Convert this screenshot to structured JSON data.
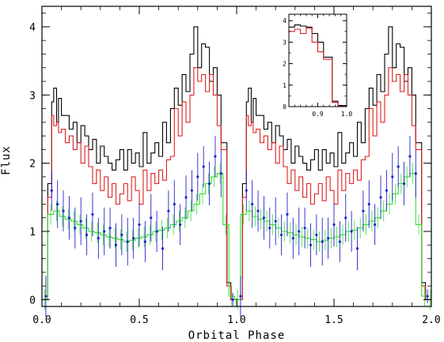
{
  "chart_data": [
    {
      "type": "line",
      "title": "",
      "xlabel": "Orbital Phase",
      "ylabel": "Flux",
      "xlim": [
        0.0,
        2.0
      ],
      "ylim": [
        -0.1,
        4.3
      ],
      "xticks": [
        "0.0",
        "0.5",
        "1.0",
        "1.5",
        "2.0"
      ],
      "yticks": [
        "0",
        "1",
        "2",
        "3",
        "4"
      ],
      "grid": false,
      "legend": "none",
      "colors": {
        "black": "#000000",
        "red": "#dd2020",
        "green": "#33dd33",
        "blue": "#2222cc"
      },
      "series": [
        {
          "style": "step",
          "color": "black",
          "x": [
            0.0,
            0.03,
            0.05,
            0.06,
            0.075,
            0.085,
            0.1,
            0.12,
            0.14,
            0.16,
            0.18,
            0.2,
            0.22,
            0.24,
            0.26,
            0.28,
            0.3,
            0.32,
            0.34,
            0.36,
            0.38,
            0.4,
            0.42,
            0.44,
            0.46,
            0.48,
            0.5,
            0.52,
            0.54,
            0.56,
            0.58,
            0.6,
            0.62,
            0.64,
            0.66,
            0.68,
            0.7,
            0.72,
            0.74,
            0.76,
            0.78,
            0.8,
            0.82,
            0.84,
            0.86,
            0.88,
            0.9,
            0.92,
            0.95,
            0.97,
            1.03,
            1.05,
            1.06,
            1.075,
            1.085,
            1.1,
            1.12,
            1.14,
            1.16,
            1.18,
            1.2,
            1.22,
            1.24,
            1.26,
            1.28,
            1.3,
            1.32,
            1.34,
            1.36,
            1.38,
            1.4,
            1.42,
            1.44,
            1.46,
            1.48,
            1.5,
            1.52,
            1.54,
            1.56,
            1.58,
            1.6,
            1.62,
            1.64,
            1.66,
            1.68,
            1.7,
            1.72,
            1.74,
            1.76,
            1.78,
            1.8,
            1.82,
            1.84,
            1.86,
            1.88,
            1.9,
            1.92,
            1.95,
            1.97,
            2.0
          ],
          "y": [
            0.0,
            1.7,
            2.9,
            3.1,
            2.6,
            2.95,
            2.7,
            2.7,
            2.5,
            2.6,
            2.3,
            2.55,
            2.4,
            2.2,
            2.35,
            2.0,
            2.25,
            2.1,
            2.0,
            1.9,
            2.05,
            2.2,
            1.9,
            2.2,
            2.0,
            2.15,
            1.95,
            2.45,
            2.0,
            2.15,
            2.3,
            2.1,
            2.6,
            2.3,
            2.8,
            3.1,
            2.85,
            3.3,
            3.05,
            3.6,
            4.0,
            3.4,
            3.75,
            3.7,
            3.2,
            3.4,
            3.0,
            2.3,
            0.25,
            0.0,
            1.7,
            2.9,
            3.1,
            2.6,
            2.95,
            2.7,
            2.7,
            2.5,
            2.6,
            2.3,
            2.55,
            2.4,
            2.2,
            2.35,
            2.0,
            2.25,
            2.1,
            2.0,
            1.9,
            2.05,
            2.2,
            1.9,
            2.2,
            2.0,
            2.15,
            1.95,
            2.45,
            2.0,
            2.15,
            2.3,
            2.1,
            2.6,
            2.3,
            2.8,
            3.1,
            2.85,
            3.3,
            3.05,
            3.6,
            4.0,
            3.4,
            3.75,
            3.7,
            3.2,
            3.4,
            3.0,
            2.3,
            0.25,
            0.0,
            0.0
          ]
        },
        {
          "style": "step",
          "color": "red",
          "x": [
            0.0,
            0.03,
            0.05,
            0.06,
            0.075,
            0.085,
            0.1,
            0.12,
            0.14,
            0.16,
            0.18,
            0.2,
            0.22,
            0.24,
            0.26,
            0.28,
            0.3,
            0.32,
            0.34,
            0.36,
            0.38,
            0.4,
            0.42,
            0.44,
            0.46,
            0.48,
            0.5,
            0.52,
            0.54,
            0.56,
            0.58,
            0.6,
            0.62,
            0.64,
            0.66,
            0.68,
            0.7,
            0.72,
            0.74,
            0.76,
            0.78,
            0.8,
            0.82,
            0.84,
            0.86,
            0.88,
            0.9,
            0.92,
            0.95,
            0.97,
            1.03,
            1.05,
            1.06,
            1.075,
            1.085,
            1.1,
            1.12,
            1.14,
            1.16,
            1.18,
            1.2,
            1.22,
            1.24,
            1.26,
            1.28,
            1.3,
            1.32,
            1.34,
            1.36,
            1.38,
            1.4,
            1.42,
            1.44,
            1.46,
            1.48,
            1.5,
            1.52,
            1.54,
            1.56,
            1.58,
            1.6,
            1.62,
            1.64,
            1.66,
            1.68,
            1.7,
            1.72,
            1.74,
            1.76,
            1.78,
            1.8,
            1.82,
            1.84,
            1.86,
            1.88,
            1.9,
            1.92,
            1.95,
            1.97,
            2.0
          ],
          "y": [
            0.0,
            1.5,
            2.7,
            2.55,
            2.6,
            2.45,
            2.5,
            2.3,
            2.4,
            2.2,
            2.3,
            2.0,
            2.25,
            1.95,
            1.7,
            1.9,
            1.6,
            1.8,
            1.5,
            1.7,
            1.4,
            1.55,
            1.7,
            1.45,
            1.8,
            1.6,
            1.4,
            1.9,
            1.6,
            1.85,
            1.7,
            1.9,
            1.75,
            2.05,
            2.1,
            2.8,
            2.4,
            2.9,
            2.6,
            3.0,
            3.4,
            3.2,
            3.3,
            3.05,
            3.3,
            3.0,
            2.55,
            2.2,
            0.2,
            0.0,
            1.5,
            2.7,
            2.55,
            2.6,
            2.45,
            2.5,
            2.3,
            2.4,
            2.2,
            2.3,
            2.0,
            2.25,
            1.95,
            1.7,
            1.9,
            1.6,
            1.8,
            1.5,
            1.7,
            1.4,
            1.55,
            1.7,
            1.45,
            1.8,
            1.6,
            1.4,
            1.9,
            1.6,
            1.85,
            1.7,
            1.9,
            1.75,
            2.05,
            2.1,
            2.8,
            2.4,
            2.9,
            2.6,
            3.0,
            3.4,
            3.2,
            3.3,
            3.05,
            3.3,
            3.0,
            2.55,
            2.2,
            0.2,
            0.0,
            0.0
          ]
        },
        {
          "style": "step-errorbar",
          "color": "green",
          "x": [
            0.0,
            0.03,
            0.06,
            0.09,
            0.12,
            0.15,
            0.18,
            0.21,
            0.24,
            0.27,
            0.3,
            0.33,
            0.36,
            0.39,
            0.42,
            0.45,
            0.48,
            0.51,
            0.54,
            0.57,
            0.6,
            0.63,
            0.66,
            0.69,
            0.72,
            0.75,
            0.78,
            0.81,
            0.84,
            0.87,
            0.9,
            0.93,
            0.96,
            0.99,
            1.02,
            1.05,
            1.08,
            1.11,
            1.14,
            1.17,
            1.2,
            1.23,
            1.26,
            1.29,
            1.32,
            1.35,
            1.38,
            1.41,
            1.44,
            1.47,
            1.5,
            1.53,
            1.56,
            1.59,
            1.62,
            1.65,
            1.68,
            1.71,
            1.74,
            1.77,
            1.8,
            1.83,
            1.86,
            1.89,
            1.92,
            1.95,
            1.98
          ],
          "y": [
            0.0,
            1.25,
            1.3,
            1.22,
            1.18,
            1.15,
            1.1,
            1.05,
            1.0,
            0.98,
            0.95,
            0.92,
            0.9,
            0.88,
            0.85,
            0.87,
            0.9,
            0.92,
            0.95,
            1.0,
            1.02,
            1.05,
            1.1,
            1.15,
            1.2,
            1.3,
            1.4,
            1.55,
            1.7,
            1.8,
            1.85,
            1.1,
            0.05,
            0.0,
            1.25,
            1.3,
            1.22,
            1.18,
            1.15,
            1.1,
            1.05,
            1.0,
            0.98,
            0.95,
            0.92,
            0.9,
            0.88,
            0.85,
            0.87,
            0.9,
            0.92,
            0.95,
            1.0,
            1.02,
            1.05,
            1.1,
            1.15,
            1.2,
            1.3,
            1.4,
            1.55,
            1.7,
            1.8,
            1.85,
            1.1,
            0.05,
            0.0
          ],
          "err": 0.15
        },
        {
          "style": "points-errorbar",
          "color": "blue",
          "x": [
            0.02,
            0.05,
            0.08,
            0.11,
            0.14,
            0.17,
            0.2,
            0.23,
            0.26,
            0.29,
            0.32,
            0.35,
            0.38,
            0.41,
            0.44,
            0.47,
            0.5,
            0.53,
            0.56,
            0.59,
            0.62,
            0.65,
            0.68,
            0.71,
            0.74,
            0.77,
            0.8,
            0.83,
            0.86,
            0.89,
            0.92,
            0.98,
            1.02,
            1.05,
            1.08,
            1.11,
            1.14,
            1.17,
            1.2,
            1.23,
            1.26,
            1.29,
            1.32,
            1.35,
            1.38,
            1.41,
            1.44,
            1.47,
            1.5,
            1.53,
            1.56,
            1.59,
            1.62,
            1.65,
            1.68,
            1.71,
            1.74,
            1.77,
            1.8,
            1.83,
            1.86,
            1.89,
            1.92,
            1.98
          ],
          "y": [
            0.05,
            1.6,
            1.4,
            1.3,
            1.2,
            1.05,
            1.15,
            0.95,
            1.25,
            0.9,
            1.0,
            1.05,
            0.8,
            0.95,
            0.85,
            0.9,
            1.1,
            0.85,
            1.2,
            1.0,
            0.75,
            1.3,
            1.4,
            1.1,
            1.5,
            1.6,
            1.8,
            1.95,
            1.7,
            2.1,
            1.85,
            0.0,
            0.05,
            1.6,
            1.4,
            1.3,
            1.2,
            1.05,
            1.15,
            0.95,
            1.25,
            0.9,
            1.0,
            1.05,
            0.8,
            0.95,
            0.85,
            0.9,
            1.1,
            0.85,
            1.2,
            1.0,
            0.75,
            1.3,
            1.4,
            1.1,
            1.5,
            1.6,
            1.8,
            1.95,
            1.7,
            2.1,
            1.85,
            0.05
          ],
          "err": [
            0.3,
            0.3,
            0.35,
            0.3,
            0.32,
            0.3,
            0.35,
            0.3,
            0.32,
            0.3,
            0.35,
            0.3,
            0.32,
            0.3,
            0.35,
            0.3,
            0.32,
            0.3,
            0.35,
            0.3,
            0.32,
            0.3,
            0.35,
            0.3,
            0.32,
            0.3,
            0.35,
            0.3,
            0.32,
            0.3,
            0.35,
            0.1,
            0.3,
            0.3,
            0.35,
            0.3,
            0.32,
            0.3,
            0.35,
            0.3,
            0.32,
            0.3,
            0.35,
            0.3,
            0.32,
            0.3,
            0.35,
            0.3,
            0.32,
            0.3,
            0.35,
            0.3,
            0.32,
            0.3,
            0.35,
            0.3,
            0.32,
            0.3,
            0.35,
            0.3,
            0.32,
            0.3,
            0.35,
            0.1
          ]
        }
      ]
    },
    {
      "type": "line",
      "title": "",
      "xlabel": "",
      "ylabel": "",
      "xlim": [
        0.8,
        1.0
      ],
      "ylim": [
        0.0,
        4.3
      ],
      "xticks": [
        "0.9",
        "1.0"
      ],
      "yticks": [
        "0",
        "1",
        "2",
        "3",
        "4"
      ],
      "grid": false,
      "legend": "none",
      "series": [
        {
          "style": "step",
          "color": "black",
          "x": [
            0.8,
            0.82,
            0.84,
            0.86,
            0.88,
            0.9,
            0.92,
            0.95,
            0.97,
            1.0
          ],
          "y": [
            3.7,
            3.8,
            3.75,
            3.7,
            3.4,
            3.0,
            2.3,
            0.25,
            0.05,
            0.05
          ]
        },
        {
          "style": "step",
          "color": "red",
          "x": [
            0.8,
            0.82,
            0.84,
            0.86,
            0.88,
            0.9,
            0.92,
            0.95,
            0.97,
            1.0
          ],
          "y": [
            3.5,
            3.6,
            3.4,
            3.65,
            3.0,
            2.55,
            2.2,
            0.2,
            0.02,
            0.02
          ]
        }
      ]
    }
  ]
}
